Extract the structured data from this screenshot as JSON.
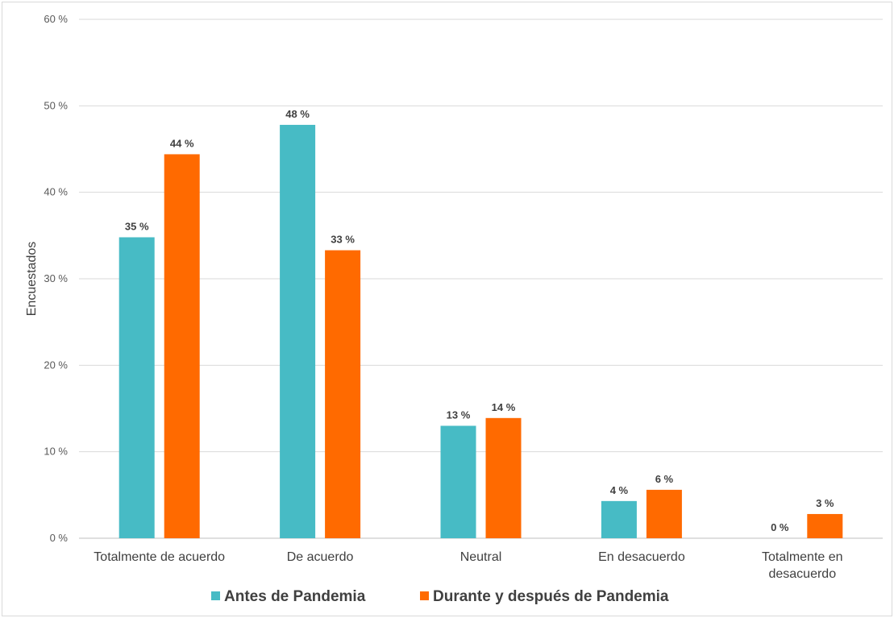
{
  "chart_data": {
    "type": "bar",
    "categories": [
      "Totalmente de acuerdo",
      "De acuerdo",
      "Neutral",
      "En desacuerdo",
      "Totalmente en desacuerdo"
    ],
    "category_lines": [
      [
        "Totalmente de acuerdo"
      ],
      [
        "De acuerdo"
      ],
      [
        "Neutral"
      ],
      [
        "En desacuerdo"
      ],
      [
        "Totalmente en",
        "desacuerdo"
      ]
    ],
    "series": [
      {
        "name": "Antes de Pandemia",
        "color": "#47bbc5",
        "values": [
          34.8,
          47.8,
          13.0,
          4.3,
          0
        ],
        "labels": [
          "35 %",
          "48 %",
          "13 %",
          "4 %",
          "0 %"
        ]
      },
      {
        "name": "Durante y después de Pandemia",
        "color": "#ff6a00",
        "values": [
          44.4,
          33.3,
          13.9,
          5.6,
          2.8
        ],
        "labels": [
          "44 %",
          "33 %",
          "14 %",
          "6 %",
          "3 %"
        ]
      }
    ],
    "ylim": [
      0,
      60
    ],
    "yticks": [
      0,
      10,
      20,
      30,
      40,
      50,
      60
    ],
    "ytick_labels": [
      "0 %",
      "10 %",
      "20 %",
      "30 %",
      "40 %",
      "50 %",
      "60 %"
    ],
    "ylabel": "Encuestados",
    "xlabel": "",
    "grid": true,
    "legend_position": "bottom"
  }
}
